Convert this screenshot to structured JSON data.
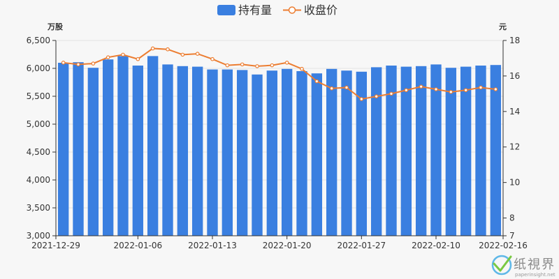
{
  "chart_data": {
    "type": "bar",
    "legend": {
      "position": "top-center",
      "items": [
        "持有量",
        "收盘价"
      ]
    },
    "y_left": {
      "unit": "万股",
      "min": 3000,
      "max": 6500,
      "ticks": [
        "3,000",
        "3,500",
        "4,000",
        "4,500",
        "5,000",
        "5,500",
        "6,000",
        "6,500"
      ]
    },
    "y_right": {
      "unit": "元",
      "min": 7,
      "max": 18,
      "ticks": [
        "7",
        "8",
        "10",
        "12",
        "14",
        "16",
        "18"
      ]
    },
    "x_ticks": [
      "2021-12-29",
      "2022-01-06",
      "2022-01-13",
      "2022-01-20",
      "2022-01-27",
      "2022-02-10",
      "2022-02-16"
    ],
    "categories": [
      "2021-12-29",
      "2021-12-30",
      "2021-12-31",
      "2022-01-04",
      "2022-01-05",
      "2022-01-06",
      "2022-01-07",
      "2022-01-10",
      "2022-01-11",
      "2022-01-12",
      "2022-01-13",
      "2022-01-14",
      "2022-01-17",
      "2022-01-18",
      "2022-01-19",
      "2022-01-20",
      "2022-01-21",
      "2022-01-24",
      "2022-01-25",
      "2022-01-26",
      "2022-01-27",
      "2022-01-28",
      "2022-02-07",
      "2022-02-08",
      "2022-02-09",
      "2022-02-10",
      "2022-02-11",
      "2022-02-14",
      "2022-02-15",
      "2022-02-16"
    ],
    "series": [
      {
        "name": "持有量",
        "type": "bar",
        "color": "#3a7fe0",
        "axis": "left",
        "values": [
          6100,
          6110,
          6010,
          6160,
          6220,
          6050,
          6220,
          6070,
          6040,
          6030,
          5980,
          5980,
          5970,
          5890,
          5960,
          5990,
          5950,
          5910,
          5990,
          5960,
          5940,
          6020,
          6050,
          6030,
          6040,
          6070,
          6010,
          6030,
          6050,
          6060
        ]
      },
      {
        "name": "收盘价",
        "type": "line",
        "color": "#ec7d31",
        "axis": "right",
        "values": [
          16.75,
          16.65,
          16.7,
          17.05,
          17.2,
          16.95,
          17.55,
          17.5,
          17.2,
          17.25,
          16.95,
          16.6,
          16.65,
          16.55,
          16.6,
          16.75,
          16.4,
          15.7,
          15.3,
          15.35,
          14.7,
          14.85,
          15.0,
          15.2,
          15.4,
          15.25,
          15.1,
          15.2,
          15.35,
          15.25
        ]
      }
    ]
  },
  "watermark": {
    "brand": "纸視界",
    "site": "paperinsight.net"
  }
}
